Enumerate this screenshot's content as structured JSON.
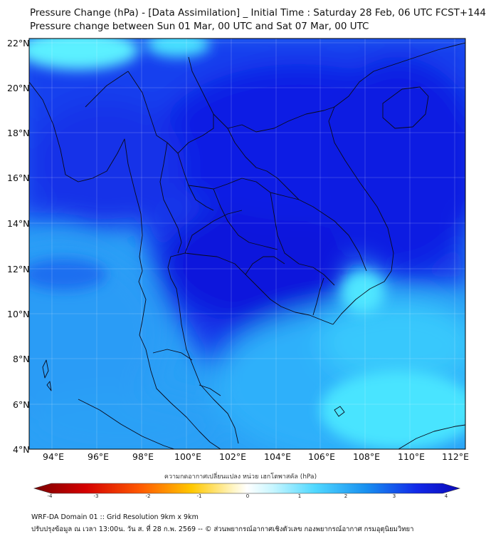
{
  "header": {
    "title": "Pressure Change (hPa) - [Data Assimilation] _ Initial Time : Saturday 28 Feb, 06 UTC FCST+144",
    "subtitle": "Pressure change between Sun 01 Mar, 00 UTC and Sat 07 Mar, 00 UTC"
  },
  "map": {
    "lat_labels": [
      "22°N",
      "20°N",
      "18°N",
      "16°N",
      "14°N",
      "12°N",
      "10°N",
      "8°N",
      "6°N",
      "4°N"
    ],
    "lon_labels": [
      "94°E",
      "96°E",
      "98°E",
      "100°E",
      "102°E",
      "104°E",
      "106°E",
      "108°E",
      "110°E",
      "112°E"
    ],
    "lat_range": [
      4,
      22.3
    ],
    "lon_range": [
      93,
      112.5
    ],
    "colors": {
      "deep_blue": "#0a16e0",
      "mid_blue": "#1a4cf0",
      "light_blue": "#2aa8f8",
      "cyan": "#3ee6ff",
      "coast": "#111111"
    }
  },
  "colorbar": {
    "label": "ความกดอากาศเปลี่ยนแปลง หน่วย เฮกโตพาสคัล (hPa)",
    "ticks": [
      "-4",
      "-3",
      "-2",
      "-1",
      "0",
      "1",
      "2",
      "3",
      "4"
    ],
    "range": [
      -4,
      4
    ]
  },
  "footer": {
    "line1": "WRF-DA Domain 01 :: Grid Resolution 9km x 9km",
    "line2": "ปรับปรุงข้อมูล ณ เวลา 13:00น. วัน ส. ที่ 28 ก.พ. 2569 -- © ส่วนพยากรณ์อากาศเชิงตัวเลข กองพยากรณ์อากาศ กรมอุตุนิยมวิทยา"
  }
}
